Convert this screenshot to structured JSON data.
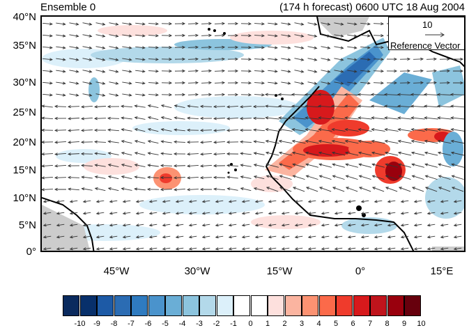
{
  "header": {
    "left_title": "Ensemble 0",
    "right_title": "(174 h forecast) 0600 UTC 18 Aug 2004"
  },
  "axes": {
    "y_labels": [
      "40°N",
      "35°N",
      "30°N",
      "25°N",
      "20°N",
      "15°N",
      "10°N",
      "5°N",
      "0°"
    ],
    "x_labels": [
      "45°W",
      "30°W",
      "15°W",
      "0°",
      "15°E"
    ]
  },
  "reference_vector": {
    "magnitude": "10",
    "label": "Reference Vector"
  },
  "colorbar": {
    "labels": [
      "-10",
      "-9",
      "-8",
      "-7",
      "-6",
      "-5",
      "-4",
      "-3",
      "-2",
      "-1",
      "0",
      "1",
      "2",
      "3",
      "4",
      "5",
      "6",
      "7",
      "8",
      "9",
      "10"
    ],
    "colors": [
      "#0a2a5e",
      "#08306b",
      "#1d5aa6",
      "#2b6cb3",
      "#2f7bc0",
      "#4a93cc",
      "#6aaed6",
      "#8cc4de",
      "#b3d9ea",
      "#dcf0fa",
      "#ffffff",
      "#ffffff",
      "#fde0dd",
      "#fbb4a0",
      "#fc9272",
      "#fb6a4a",
      "#ef3b2c",
      "#d7191c",
      "#c0141c",
      "#99000d",
      "#67000d"
    ]
  }
}
